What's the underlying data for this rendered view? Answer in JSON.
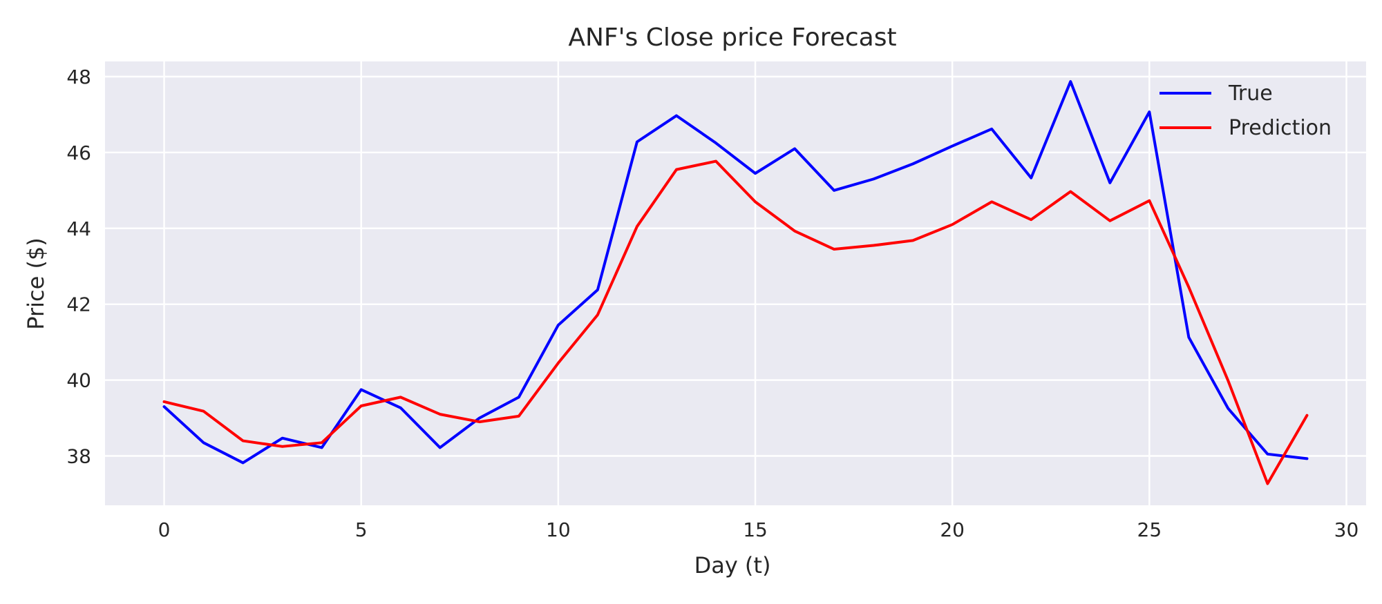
{
  "chart_data": {
    "type": "line",
    "title": "ANF's Close price Forecast",
    "xlabel": "Day (t)",
    "ylabel": "Price ($)",
    "xlim": [
      -1.5,
      30.5
    ],
    "ylim": [
      36.7,
      48.4
    ],
    "xticks": [
      0,
      5,
      10,
      15,
      20,
      25,
      30
    ],
    "yticks": [
      38,
      40,
      42,
      44,
      46,
      48
    ],
    "grid": true,
    "legend_position": "top-right",
    "x": [
      0,
      1,
      2,
      3,
      4,
      5,
      6,
      7,
      8,
      9,
      10,
      11,
      12,
      13,
      14,
      15,
      16,
      17,
      18,
      19,
      20,
      21,
      22,
      23,
      24,
      25,
      26,
      27,
      28,
      29
    ],
    "series": [
      {
        "name": "True",
        "color": "#0000ff",
        "values": [
          39.3,
          38.35,
          37.82,
          38.47,
          38.22,
          39.75,
          39.27,
          38.22,
          39.0,
          39.55,
          41.45,
          42.38,
          46.28,
          46.97,
          46.25,
          45.45,
          46.1,
          45.0,
          45.3,
          45.7,
          46.17,
          46.62,
          45.33,
          47.87,
          45.2,
          47.07,
          41.13,
          39.25,
          38.05,
          37.93
        ]
      },
      {
        "name": "Prediction",
        "color": "#ff0000",
        "values": [
          39.43,
          39.18,
          38.4,
          38.25,
          38.35,
          39.32,
          39.55,
          39.1,
          38.9,
          39.05,
          40.45,
          41.72,
          44.05,
          45.55,
          45.77,
          44.7,
          43.93,
          43.45,
          43.55,
          43.68,
          44.1,
          44.7,
          44.23,
          44.97,
          44.2,
          44.73,
          42.45,
          39.98,
          37.27,
          39.07
        ]
      }
    ]
  }
}
